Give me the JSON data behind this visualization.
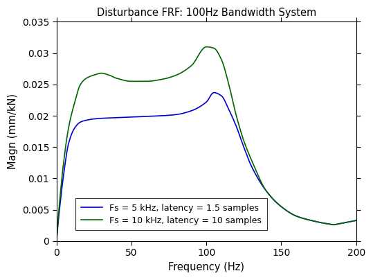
{
  "title": "Disturbance FRF: 100Hz Bandwidth System",
  "xlabel": "Frequency (Hz)",
  "ylabel": "Magn (mm/kN)",
  "xlim": [
    0,
    200
  ],
  "ylim": [
    0,
    0.035
  ],
  "yticks": [
    0,
    0.005,
    0.01,
    0.015,
    0.02,
    0.025,
    0.03,
    0.035
  ],
  "xticks": [
    0,
    50,
    100,
    150,
    200
  ],
  "line1_color": "#0000cd",
  "line2_color": "#006400",
  "legend1": "Fs = 5 kHz, latency = 1.5 samples",
  "legend2": "Fs = 10 kHz, latency = 10 samples",
  "figsize": [
    5.39,
    4.04
  ],
  "dpi": 100,
  "blue_x": [
    0,
    2,
    5,
    8,
    12,
    16,
    20,
    25,
    30,
    40,
    50,
    60,
    70,
    80,
    90,
    100,
    105,
    110,
    115,
    120,
    125,
    130,
    140,
    150,
    160,
    170,
    180,
    190,
    200
  ],
  "blue_y": [
    0,
    0.005,
    0.011,
    0.0155,
    0.018,
    0.019,
    0.0193,
    0.0195,
    0.0196,
    0.0197,
    0.0198,
    0.0199,
    0.02,
    0.0202,
    0.0208,
    0.0222,
    0.0237,
    0.0232,
    0.021,
    0.0183,
    0.015,
    0.012,
    0.008,
    0.0055,
    0.004,
    0.0033,
    0.0028,
    0.0025,
    0.0033
  ],
  "green_x": [
    0,
    2,
    5,
    8,
    12,
    16,
    20,
    25,
    30,
    35,
    40,
    50,
    60,
    70,
    80,
    90,
    100,
    105,
    110,
    115,
    120,
    125,
    130,
    140,
    150,
    160,
    170,
    180,
    190,
    200
  ],
  "green_y": [
    0,
    0.006,
    0.013,
    0.018,
    0.022,
    0.025,
    0.026,
    0.0265,
    0.0268,
    0.0265,
    0.026,
    0.0255,
    0.0255,
    0.0258,
    0.0265,
    0.028,
    0.031,
    0.0308,
    0.029,
    0.025,
    0.02,
    0.016,
    0.013,
    0.008,
    0.0055,
    0.004,
    0.0033,
    0.0028,
    0.0025,
    0.0033
  ]
}
